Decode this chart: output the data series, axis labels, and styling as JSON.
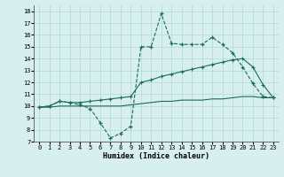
{
  "x": [
    0,
    1,
    2,
    3,
    4,
    5,
    6,
    7,
    8,
    9,
    10,
    11,
    12,
    13,
    14,
    15,
    16,
    17,
    18,
    19,
    20,
    21,
    22,
    23
  ],
  "y_main": [
    9.9,
    10.0,
    10.4,
    10.3,
    10.1,
    9.8,
    8.6,
    7.3,
    7.7,
    8.3,
    15.0,
    15.0,
    17.8,
    15.3,
    15.2,
    15.2,
    15.2,
    15.8,
    15.2,
    14.5,
    13.3,
    11.9,
    10.8,
    10.7
  ],
  "y_upper": [
    9.9,
    10.0,
    10.4,
    10.3,
    10.3,
    10.4,
    10.5,
    10.6,
    10.7,
    10.8,
    12.0,
    12.2,
    12.5,
    12.7,
    12.9,
    13.1,
    13.3,
    13.5,
    13.7,
    13.9,
    14.0,
    13.3,
    11.8,
    10.7
  ],
  "y_lower": [
    9.9,
    9.9,
    10.0,
    10.0,
    10.0,
    10.0,
    10.0,
    10.0,
    10.0,
    10.1,
    10.2,
    10.3,
    10.4,
    10.4,
    10.5,
    10.5,
    10.5,
    10.6,
    10.6,
    10.7,
    10.8,
    10.8,
    10.7,
    10.7
  ],
  "line_color": "#1a6b5a",
  "bg_color": "#d7f0ef",
  "grid_color": "#b0d8d8",
  "xlabel": "Humidex (Indice chaleur)",
  "xlim": [
    -0.5,
    23.5
  ],
  "ylim": [
    7,
    18.5
  ],
  "yticks": [
    7,
    8,
    9,
    10,
    11,
    12,
    13,
    14,
    15,
    16,
    17,
    18
  ],
  "xticks": [
    0,
    1,
    2,
    3,
    4,
    5,
    6,
    7,
    8,
    9,
    10,
    11,
    12,
    13,
    14,
    15,
    16,
    17,
    18,
    19,
    20,
    21,
    22,
    23
  ]
}
